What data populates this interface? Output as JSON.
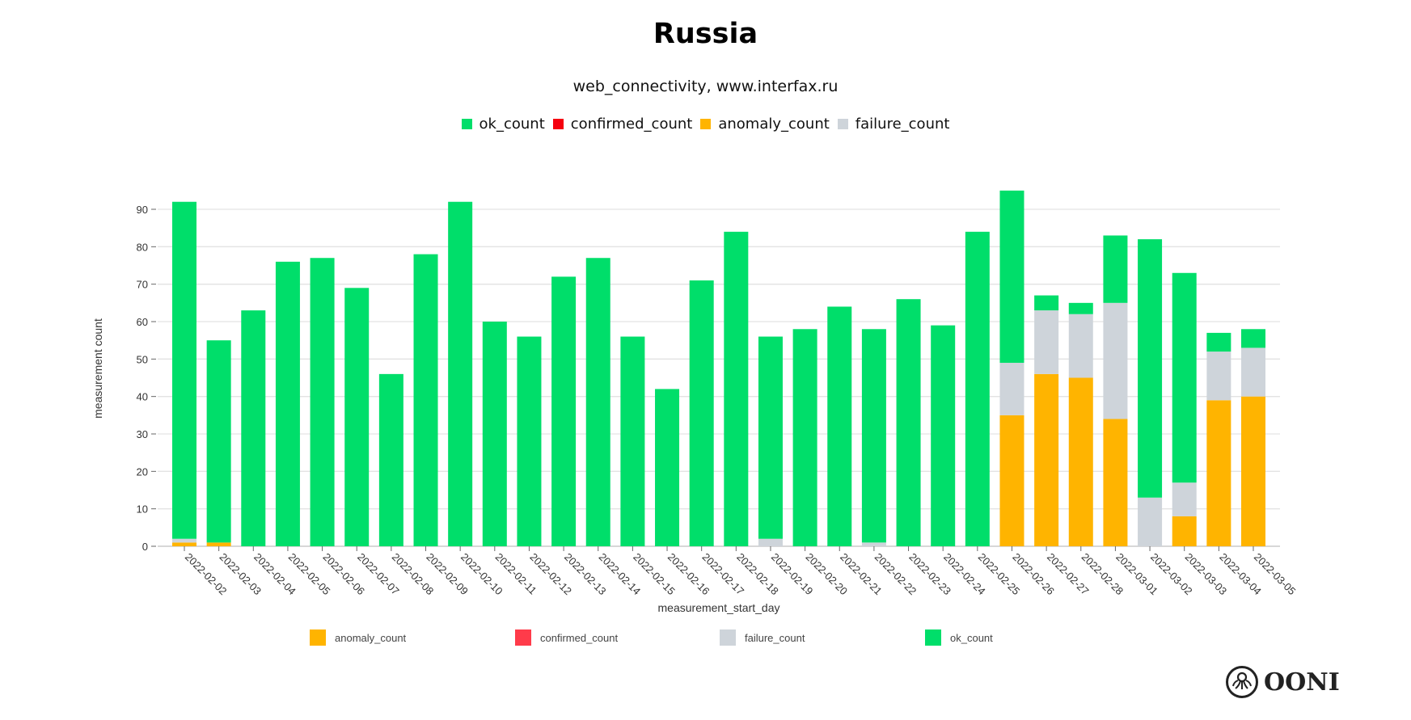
{
  "title": "Russia",
  "subtitle": "web_connectivity, www.interfax.ru",
  "top_legend": [
    {
      "label": "ok_count",
      "color": "#00DE6A"
    },
    {
      "label": "confirmed_count",
      "color": "#F5000F"
    },
    {
      "label": "anomaly_count",
      "color": "#FFB400"
    },
    {
      "label": "failure_count",
      "color": "#CED4DA"
    }
  ],
  "logo_text": "OONI",
  "chart_data": {
    "type": "bar",
    "stacked": true,
    "xlabel": "measurement_start_day",
    "ylabel": "measurement count",
    "ylim": [
      0,
      96
    ],
    "yticks": [
      0,
      10,
      20,
      30,
      40,
      50,
      60,
      70,
      80,
      90
    ],
    "grid": true,
    "legend_position": "bottom",
    "categories": [
      "2022-02-02",
      "2022-02-03",
      "2022-02-04",
      "2022-02-05",
      "2022-02-06",
      "2022-02-07",
      "2022-02-08",
      "2022-02-09",
      "2022-02-10",
      "2022-02-11",
      "2022-02-12",
      "2022-02-13",
      "2022-02-14",
      "2022-02-15",
      "2022-02-16",
      "2022-02-17",
      "2022-02-18",
      "2022-02-19",
      "2022-02-20",
      "2022-02-21",
      "2022-02-22",
      "2022-02-23",
      "2022-02-24",
      "2022-02-25",
      "2022-02-26",
      "2022-02-27",
      "2022-02-28",
      "2022-03-01",
      "2022-03-02",
      "2022-03-03",
      "2022-03-04",
      "2022-03-05"
    ],
    "series": [
      {
        "name": "anomaly_count",
        "color": "#FFB400",
        "values": [
          1,
          1,
          0,
          0,
          0,
          0,
          0,
          0,
          0,
          0,
          0,
          0,
          0,
          0,
          0,
          0,
          0,
          0,
          0,
          0,
          0,
          0,
          0,
          0,
          35,
          46,
          45,
          34,
          0,
          8,
          39,
          40
        ]
      },
      {
        "name": "confirmed_count",
        "color": "#FF3B4A",
        "values": [
          0,
          0,
          0,
          0,
          0,
          0,
          0,
          0,
          0,
          0,
          0,
          0,
          0,
          0,
          0,
          0,
          0,
          0,
          0,
          0,
          0,
          0,
          0,
          0,
          0,
          0,
          0,
          0,
          0,
          0,
          0,
          0
        ]
      },
      {
        "name": "failure_count",
        "color": "#CED4DA",
        "values": [
          1,
          0,
          0,
          0,
          0,
          0,
          0,
          0,
          0,
          0,
          0,
          0,
          0,
          0,
          0,
          0,
          0,
          2,
          0,
          0,
          1,
          0,
          0,
          0,
          14,
          17,
          17,
          31,
          13,
          9,
          13,
          13
        ]
      },
      {
        "name": "ok_count",
        "color": "#00DE6A",
        "values": [
          90,
          54,
          63,
          76,
          77,
          69,
          46,
          78,
          92,
          60,
          56,
          72,
          77,
          56,
          42,
          71,
          84,
          54,
          58,
          64,
          57,
          66,
          59,
          84,
          46,
          4,
          3,
          18,
          69,
          56,
          5,
          5
        ]
      }
    ]
  }
}
